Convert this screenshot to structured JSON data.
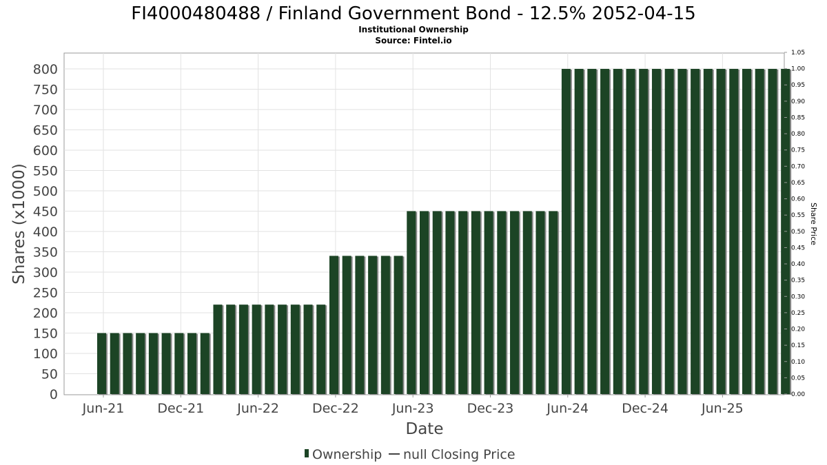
{
  "chart_data": {
    "type": "bar",
    "title": "FI4000480488 / Finland Government Bond - 12.5% 2052-04-15",
    "subtitle": "Institutional Ownership",
    "source": "Source: Fintel.io",
    "xlabel": "Date",
    "ylabel": "Shares (x1000)",
    "y2label": "Share Price",
    "ylim": [
      0,
      820
    ],
    "yticks": [
      "0",
      "50",
      "100",
      "150",
      "200",
      "250",
      "300",
      "350",
      "400",
      "450",
      "500",
      "550",
      "600",
      "650",
      "700",
      "750",
      "800"
    ],
    "y2lim": [
      0,
      1.05
    ],
    "y2ticks": [
      "0.00",
      "0.05",
      "0.10",
      "0.15",
      "0.20",
      "0.25",
      "0.30",
      "0.35",
      "0.40",
      "0.45",
      "0.50",
      "0.55",
      "0.60",
      "0.65",
      "0.70",
      "0.75",
      "0.80",
      "0.85",
      "0.90",
      "0.95",
      "1.00",
      "1.05"
    ],
    "xticks": [
      "Jun-21",
      "Dec-21",
      "Jun-22",
      "Dec-22",
      "Jun-23",
      "Dec-23",
      "Jun-24",
      "Dec-24",
      "Jun-25"
    ],
    "grid": true,
    "legend_position": "bottom",
    "series": [
      {
        "name": "Ownership",
        "color": "#1c4425",
        "values": [
          150,
          150,
          150,
          150,
          150,
          150,
          150,
          150,
          150,
          220,
          220,
          220,
          220,
          220,
          220,
          220,
          220,
          220,
          340,
          340,
          340,
          340,
          340,
          340,
          450,
          450,
          450,
          450,
          450,
          450,
          450,
          450,
          450,
          450,
          450,
          450,
          800,
          800,
          800,
          800,
          800,
          800,
          800,
          800,
          800,
          800,
          800,
          800,
          800,
          800,
          800,
          800,
          800,
          800
        ]
      },
      {
        "name": "null Closing Price",
        "color": "#333333",
        "values": []
      }
    ]
  }
}
